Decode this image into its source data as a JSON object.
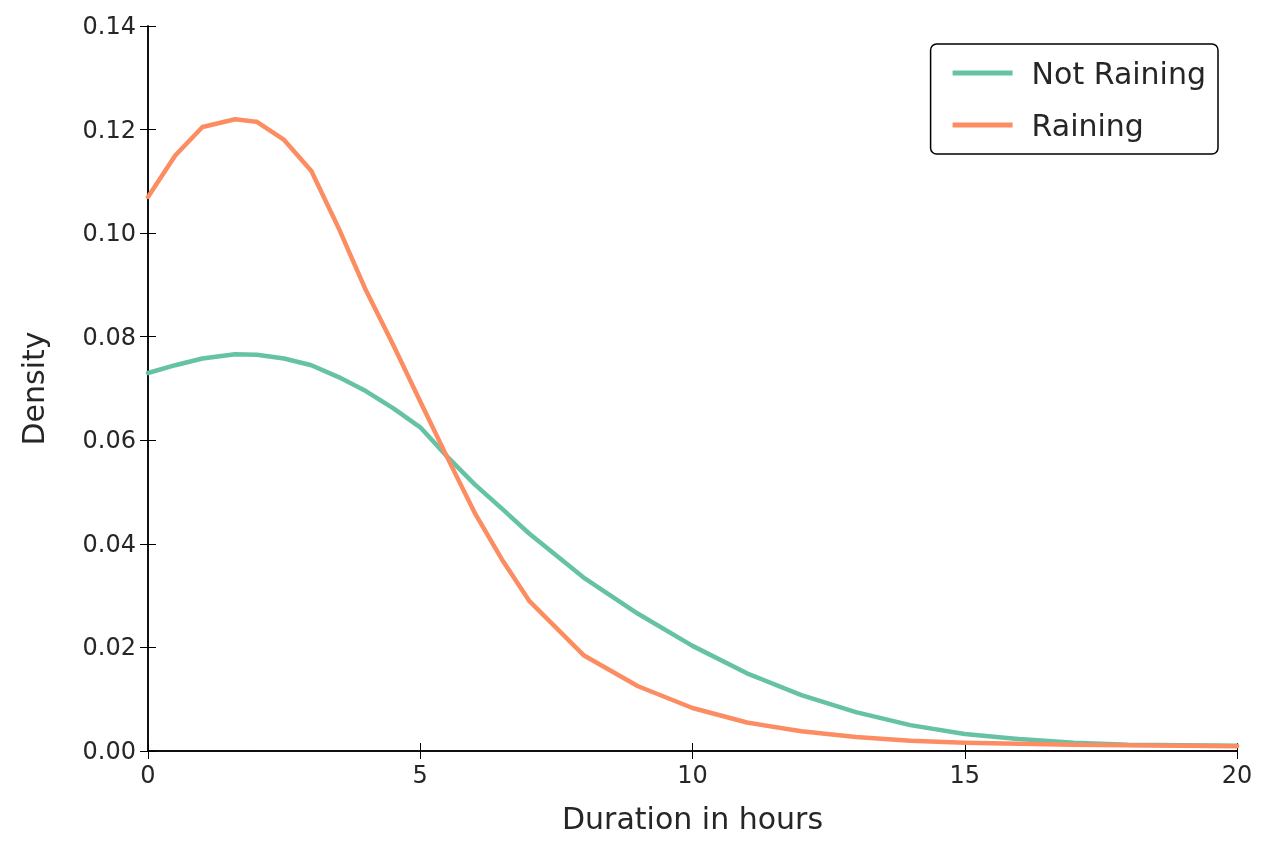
{
  "chart_data": {
    "type": "line",
    "xlabel": "Duration in hours",
    "ylabel": "Density",
    "xlim": [
      0,
      20
    ],
    "xticks": [
      0,
      5,
      10,
      15,
      20
    ],
    "ylim": [
      0,
      0.14
    ],
    "yticks": [
      {
        "value": 0,
        "label": "0.00"
      },
      {
        "value": 0.02,
        "label": "0.02"
      },
      {
        "value": 0.04,
        "label": "0.04"
      },
      {
        "value": 0.06,
        "label": "0.06"
      },
      {
        "value": 0.08,
        "label": "0.08"
      },
      {
        "value": 0.1,
        "label": "0.10"
      },
      {
        "value": 0.12,
        "label": "0.12"
      },
      {
        "value": 0.14,
        "label": "0.14"
      }
    ],
    "grid": false,
    "legend": "top right",
    "marker": "none",
    "line_style": "solid",
    "x": [
      0,
      0.5,
      1,
      1.6,
      2,
      2.5,
      3,
      3.5,
      4,
      4.5,
      5,
      5.5,
      6,
      6.5,
      7,
      8,
      9,
      10,
      11,
      12,
      13,
      14,
      15,
      16,
      17,
      18,
      20
    ],
    "series": [
      {
        "name": "Not Raining",
        "color": "#66c2a5",
        "values": [
          0.073,
          0.0745,
          0.0758,
          0.0766,
          0.0765,
          0.0758,
          0.0745,
          0.0722,
          0.0695,
          0.0662,
          0.0625,
          0.0568,
          0.0515,
          0.0468,
          0.042,
          0.0335,
          0.0265,
          0.0203,
          0.015,
          0.0108,
          0.0075,
          0.005,
          0.0033,
          0.0023,
          0.0016,
          0.0012,
          0.001
        ]
      },
      {
        "name": "Raining",
        "color": "#fc8d62",
        "values": [
          0.107,
          0.115,
          0.1205,
          0.122,
          0.1215,
          0.118,
          0.112,
          0.101,
          0.089,
          0.0785,
          0.0675,
          0.0566,
          0.046,
          0.037,
          0.029,
          0.0185,
          0.0125,
          0.0083,
          0.0055,
          0.0038,
          0.0027,
          0.002,
          0.0016,
          0.0014,
          0.0012,
          0.0011,
          0.0009
        ]
      }
    ]
  }
}
